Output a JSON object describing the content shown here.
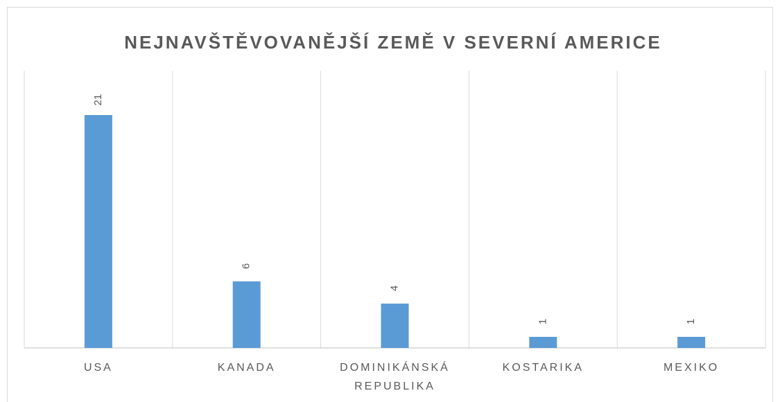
{
  "chart_data": {
    "type": "bar",
    "title": "NEJNAVŠTĚVOVANĚJŠÍ ZEMĚ V SEVERNÍ AMERICE",
    "categories": [
      "USA",
      "KANADA",
      "DOMINIKÁNSKÁ REPUBLIKA",
      "KOSTARIKA",
      "MEXIKO"
    ],
    "values": [
      21,
      6,
      4,
      1,
      1
    ],
    "color": "#5b9bd5",
    "ylim": [
      0,
      25
    ]
  }
}
